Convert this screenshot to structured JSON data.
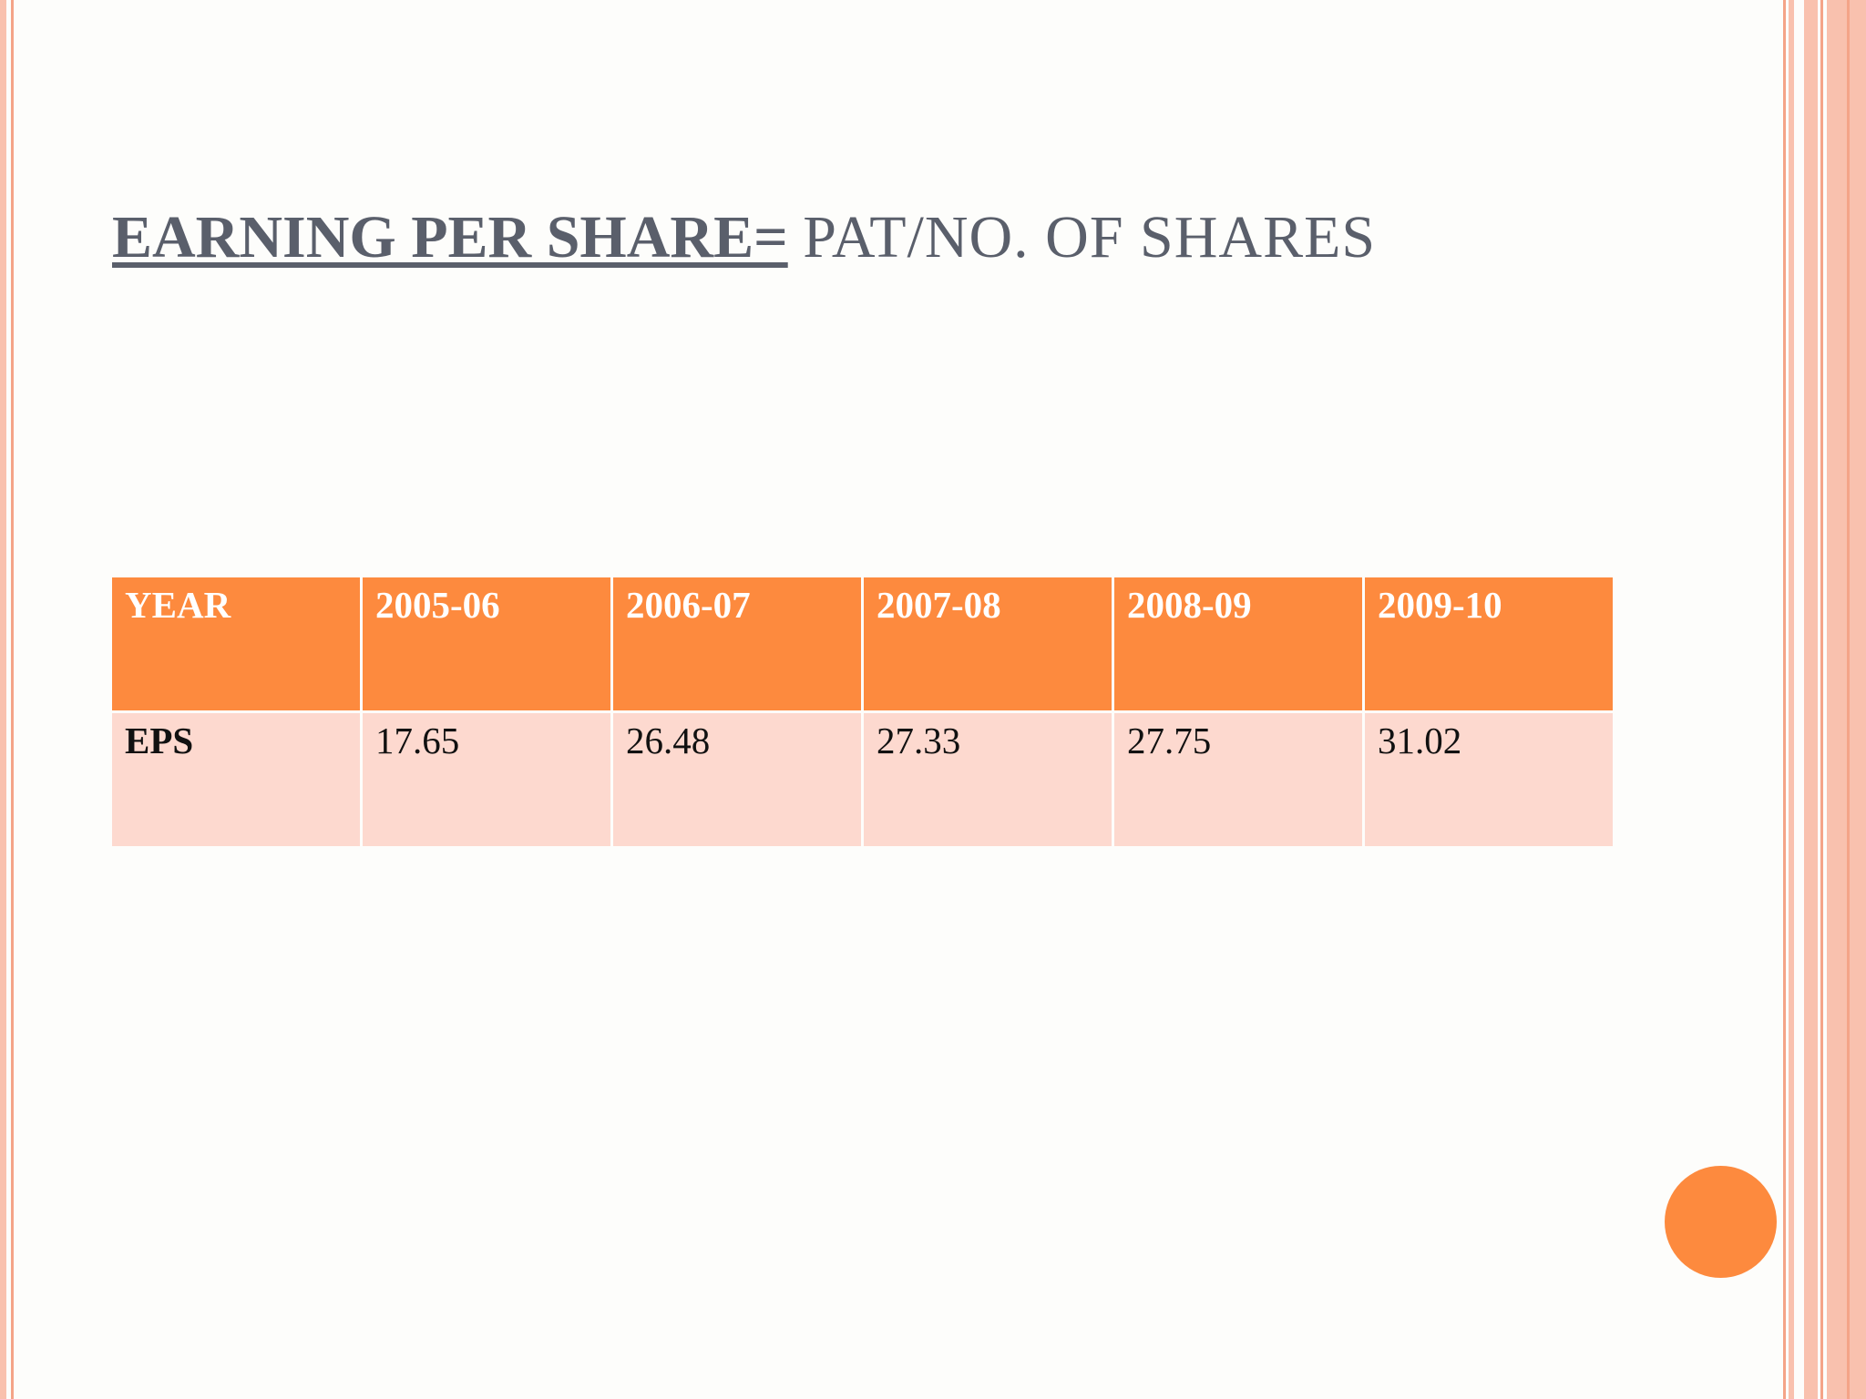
{
  "slide": {
    "title_bold": "EARNING PER SHARE=",
    "title_rest": "PAT/NO. OF SHARES"
  },
  "table": {
    "header": [
      "YEAR",
      "2005-06",
      "2006-07",
      "2007-08",
      "2008-09",
      "2009-10"
    ],
    "row_label": "EPS",
    "values": [
      "17.65",
      "26.48",
      "27.33",
      "27.75",
      "31.02"
    ]
  },
  "colors": {
    "accent": "#fd8a3e",
    "row_fill": "#fdd9cf",
    "title_text": "#5a5f6b",
    "border_light": "#f9c1ae",
    "border_dark": "#f4a488"
  }
}
